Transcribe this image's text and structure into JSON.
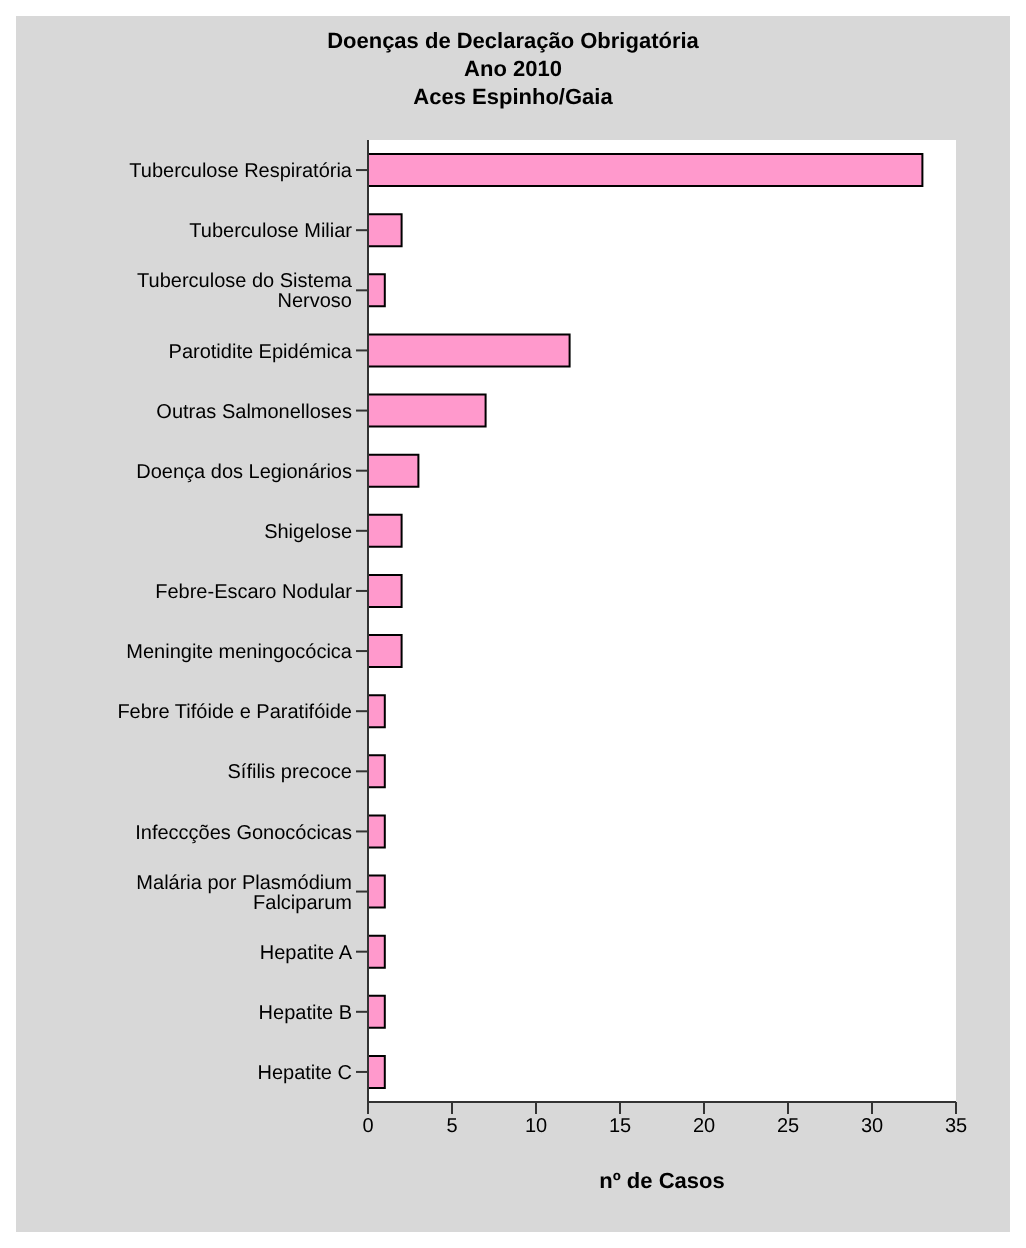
{
  "chart_data": {
    "type": "bar",
    "orientation": "horizontal",
    "title": "Doenças de Declaração Obrigatória\nAno 2010\nAces Espinho/Gaia",
    "xlabel": "nº de Casos",
    "categories": [
      "Tuberculose Respiratória",
      "Tuberculose Miliar",
      "Tuberculose do Sistema Nervoso",
      "Parotidite Epidémica",
      "Outras Salmonelloses",
      "Doença dos Legionários",
      "Shigelose",
      "Febre-Escaro Nodular",
      "Meningite meningocócica",
      "Febre Tifóide e Paratifóide",
      "Sífilis precoce",
      "Infeccções Gonocócicas",
      "Malária por Plasmódium Falciparum",
      "Hepatite A",
      "Hepatite B",
      "Hepatite C"
    ],
    "values": [
      33,
      2,
      1,
      12,
      7,
      3,
      2,
      2,
      2,
      1,
      1,
      1,
      1,
      1,
      1,
      1
    ],
    "color": "#ff99cc",
    "xlim": [
      0,
      35
    ],
    "xticks": [
      0,
      5,
      10,
      15,
      20,
      25,
      30,
      35
    ],
    "grid": false,
    "legend": false
  }
}
